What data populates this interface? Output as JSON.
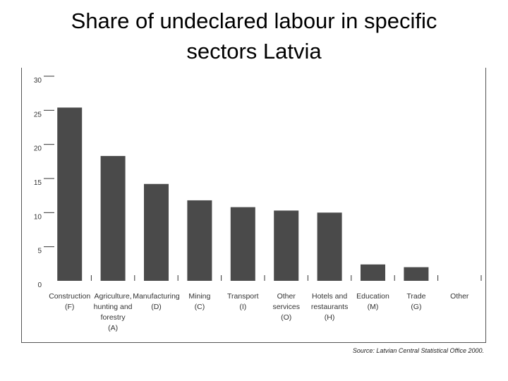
{
  "title_line1": "Share of undeclared labour in specific",
  "title_line2": "sectors Latvia",
  "source": "Source: Latvian Central Statistical Office 2000.",
  "chart_data": {
    "type": "bar",
    "title": "Share of undeclared labour in specific sectors Latvia",
    "xlabel": "",
    "ylabel": "",
    "ylim": [
      0,
      30
    ],
    "yticks": [
      0,
      5,
      10,
      15,
      20,
      25,
      30
    ],
    "bar_color": "#4a4a4a",
    "grid": false,
    "categories": [
      [
        "Construction",
        "(F)"
      ],
      [
        "Agriculture,",
        "hunting and",
        "forestry",
        "(A)"
      ],
      [
        "Manufacturing",
        "(D)"
      ],
      [
        "Mining",
        "(C)"
      ],
      [
        "Transport",
        "(I)"
      ],
      [
        "Other",
        "services",
        "(O)"
      ],
      [
        "Hotels and",
        "restaurants",
        "(H)"
      ],
      [
        "Education",
        "(M)"
      ],
      [
        "Trade",
        "(G)"
      ],
      [
        "Other"
      ]
    ],
    "values": [
      25.4,
      18.3,
      14.2,
      11.8,
      10.8,
      10.3,
      10.0,
      2.4,
      2.0,
      0
    ]
  }
}
